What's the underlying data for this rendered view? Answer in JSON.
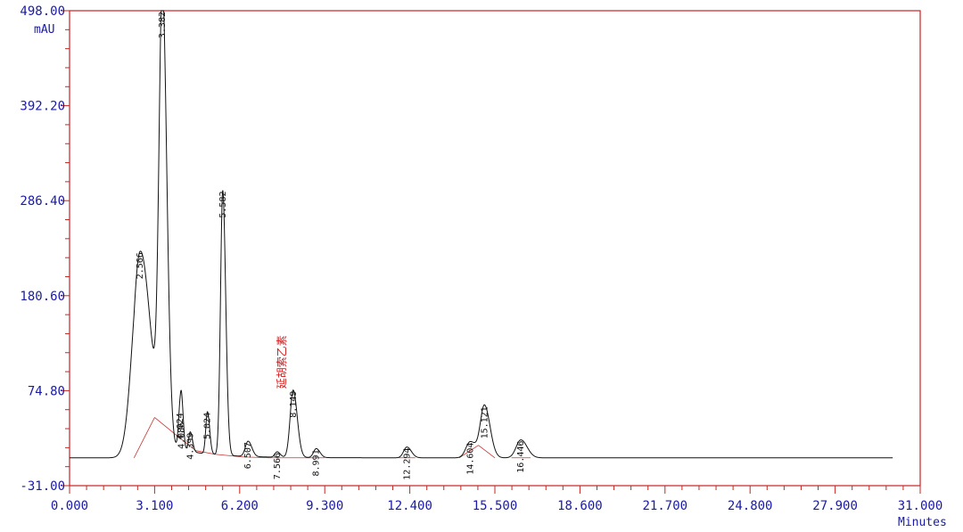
{
  "chart_data": {
    "type": "line",
    "y_unit": "mAU",
    "x_unit": "Minutes",
    "xlim": [
      0,
      31
    ],
    "ylim": [
      -31,
      498
    ],
    "x_ticks": [
      "0.000",
      "3.100",
      "6.200",
      "9.300",
      "12.400",
      "15.500",
      "18.600",
      "21.700",
      "24.800",
      "27.900",
      "31.000"
    ],
    "x_tick_values": [
      0,
      3.1,
      6.2,
      9.3,
      12.4,
      15.5,
      18.6,
      21.7,
      24.8,
      27.9,
      31.0
    ],
    "y_ticks": [
      "498.00",
      "392.20",
      "286.40",
      "180.60",
      "74.80",
      "-31.00"
    ],
    "y_tick_values": [
      498,
      392.2,
      286.4,
      180.6,
      74.8,
      -31
    ],
    "colors": {
      "axis": "#cc2222",
      "signal": "#111111",
      "baseline": "#cc3333",
      "tick_text": "#1a1aa6",
      "name_text": "#d01818"
    },
    "peaks": [
      {
        "rt": 2.566,
        "label": "2.566",
        "height": 215,
        "width": 0.28
      },
      {
        "rt": 3.382,
        "label": "3.382",
        "height": 495,
        "width": 0.12
      },
      {
        "rt": 4.024,
        "label": "4.024",
        "height": 42,
        "width": 0.06
      },
      {
        "rt": 4.086,
        "label": "4.086",
        "height": 32,
        "width": 0.05
      },
      {
        "rt": 4.399,
        "label": "4.399",
        "height": 22,
        "width": 0.06
      },
      {
        "rt": 5.024,
        "label": "5.024",
        "height": 47,
        "width": 0.06
      },
      {
        "rt": 5.582,
        "label": "5.582",
        "height": 295,
        "width": 0.08
      },
      {
        "rt": 6.507,
        "label": "6.507",
        "height": 17,
        "width": 0.1
      },
      {
        "rt": 7.566,
        "label": "7.566",
        "height": 6,
        "width": 0.08
      },
      {
        "rt": 8.149,
        "label": "8.149",
        "height": 75,
        "width": 0.11
      },
      {
        "rt": 8.991,
        "label": "8.991",
        "height": 10,
        "width": 0.1
      },
      {
        "rt": 12.294,
        "label": "12.294",
        "height": 12,
        "width": 0.12
      },
      {
        "rt": 14.604,
        "label": "14.604",
        "height": 18,
        "width": 0.16
      },
      {
        "rt": 15.121,
        "label": "15.121",
        "height": 58,
        "width": 0.15
      },
      {
        "rt": 16.446,
        "label": "16.446",
        "height": 20,
        "width": 0.17
      }
    ],
    "named_peak": {
      "rt": 8.149,
      "name": "延胡索乙素"
    },
    "baseline_segments": [
      [
        2.35,
        0,
        3.1,
        45
      ],
      [
        3.1,
        45,
        3.9,
        25
      ],
      [
        3.9,
        25,
        4.6,
        8
      ],
      [
        4.6,
        8,
        5.3,
        4
      ],
      [
        5.3,
        4,
        6.3,
        1
      ],
      [
        6.3,
        1,
        7.3,
        0
      ],
      [
        7.3,
        0,
        8.6,
        0
      ],
      [
        8.6,
        0,
        9.3,
        0
      ],
      [
        12.0,
        0,
        12.6,
        0
      ],
      [
        14.2,
        0,
        14.9,
        14
      ],
      [
        14.9,
        14,
        15.5,
        0
      ],
      [
        16.1,
        0,
        16.8,
        0
      ]
    ],
    "run_end": 30.0,
    "baseline_level": 0
  }
}
